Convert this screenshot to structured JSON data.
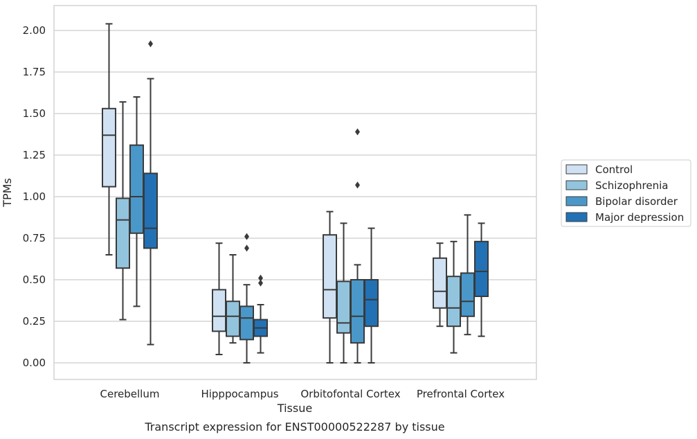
{
  "chart_data": {
    "type": "box",
    "xlabel": "Tissue",
    "ylabel": "TPMs",
    "caption": "Transcript expression for ENST00000522287 by tissue",
    "ylim": [
      -0.1,
      2.15
    ],
    "yticks": [
      "0.00",
      "0.25",
      "0.50",
      "0.75",
      "1.00",
      "1.25",
      "1.50",
      "1.75",
      "2.00"
    ],
    "grid": "horizontal",
    "legend_position": "right",
    "categories": [
      "Cerebellum",
      "Hipppocampus",
      "Orbitofontal Cortex",
      "Prefrontal Cortex"
    ],
    "series": [
      {
        "name": "Control",
        "color": "#cfe1f2",
        "boxes": [
          {
            "whislo": 0.65,
            "q1": 1.06,
            "med": 1.37,
            "q3": 1.53,
            "whishi": 2.04,
            "fliers": []
          },
          {
            "whislo": 0.05,
            "q1": 0.19,
            "med": 0.28,
            "q3": 0.44,
            "whishi": 0.72,
            "fliers": []
          },
          {
            "whislo": 0.0,
            "q1": 0.27,
            "med": 0.44,
            "q3": 0.77,
            "whishi": 0.91,
            "fliers": []
          },
          {
            "whislo": 0.22,
            "q1": 0.33,
            "med": 0.43,
            "q3": 0.63,
            "whishi": 0.72,
            "fliers": []
          }
        ]
      },
      {
        "name": "Schizophrenia",
        "color": "#93c4de",
        "boxes": [
          {
            "whislo": 0.26,
            "q1": 0.57,
            "med": 0.86,
            "q3": 0.99,
            "whishi": 1.57,
            "fliers": []
          },
          {
            "whislo": 0.12,
            "q1": 0.16,
            "med": 0.28,
            "q3": 0.37,
            "whishi": 0.65,
            "fliers": []
          },
          {
            "whislo": 0.0,
            "q1": 0.18,
            "med": 0.24,
            "q3": 0.49,
            "whishi": 0.84,
            "fliers": []
          },
          {
            "whislo": 0.06,
            "q1": 0.22,
            "med": 0.33,
            "q3": 0.52,
            "whishi": 0.73,
            "fliers": []
          }
        ]
      },
      {
        "name": "Bipolar disorder",
        "color": "#4a98c9",
        "boxes": [
          {
            "whislo": 0.34,
            "q1": 0.78,
            "med": 1.0,
            "q3": 1.31,
            "whishi": 1.6,
            "fliers": []
          },
          {
            "whislo": 0.0,
            "q1": 0.14,
            "med": 0.27,
            "q3": 0.34,
            "whishi": 0.47,
            "fliers": [
              0.69,
              0.76
            ]
          },
          {
            "whislo": 0.0,
            "q1": 0.12,
            "med": 0.28,
            "q3": 0.5,
            "whishi": 0.59,
            "fliers": [
              1.07,
              1.39
            ]
          },
          {
            "whislo": 0.17,
            "q1": 0.28,
            "med": 0.37,
            "q3": 0.54,
            "whishi": 0.89,
            "fliers": []
          }
        ]
      },
      {
        "name": "Major depression",
        "color": "#2271b5",
        "boxes": [
          {
            "whislo": 0.11,
            "q1": 0.69,
            "med": 0.81,
            "q3": 1.14,
            "whishi": 1.71,
            "fliers": [
              1.92
            ]
          },
          {
            "whislo": 0.06,
            "q1": 0.16,
            "med": 0.21,
            "q3": 0.26,
            "whishi": 0.35,
            "fliers": [
              0.48,
              0.51
            ]
          },
          {
            "whislo": 0.0,
            "q1": 0.22,
            "med": 0.38,
            "q3": 0.5,
            "whishi": 0.81,
            "fliers": []
          },
          {
            "whislo": 0.16,
            "q1": 0.4,
            "med": 0.55,
            "q3": 0.73,
            "whishi": 0.84,
            "fliers": []
          }
        ]
      }
    ]
  }
}
